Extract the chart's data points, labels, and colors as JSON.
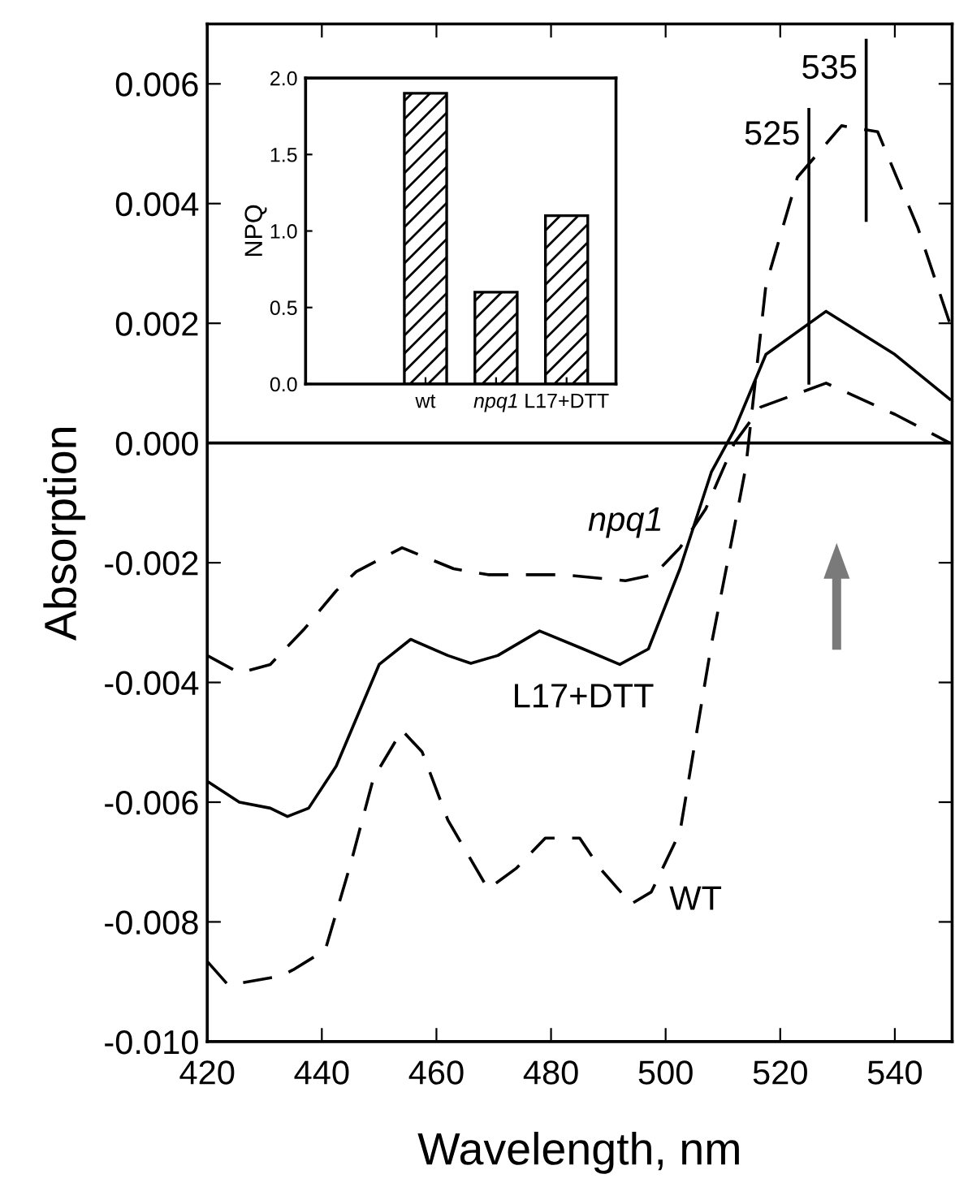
{
  "chart_data": [
    {
      "type": "line",
      "xlabel": "Wavelength, nm",
      "ylabel": "Absorption",
      "xlim": [
        420,
        550
      ],
      "ylim": [
        -0.01,
        0.007
      ],
      "xticks": [
        420,
        440,
        460,
        480,
        500,
        520,
        540
      ],
      "yticks": [
        {
          "value": -0.01,
          "label": "-0.010"
        },
        {
          "value": -0.008,
          "label": "-0.008"
        },
        {
          "value": -0.006,
          "label": "-0.006"
        },
        {
          "value": -0.004,
          "label": "-0.004"
        },
        {
          "value": -0.002,
          "label": "-0.002"
        },
        {
          "value": 0,
          "label": "0.000"
        },
        {
          "value": 0.002,
          "label": "0.002"
        },
        {
          "value": 0.004,
          "label": "0.004"
        },
        {
          "value": 0.006,
          "label": "0.006"
        }
      ],
      "grid": false,
      "legend": false,
      "series": [
        {
          "name": "npq1",
          "color": "#000000",
          "line_style": "dashed",
          "x": [
            420,
            425.6,
            431,
            437,
            442.5,
            446,
            454,
            463,
            469,
            482,
            493,
            498,
            502.5,
            507,
            512,
            516.6,
            528,
            540,
            549.6
          ],
          "values": [
            -0.00355,
            -0.00384,
            -0.0037,
            -0.0031,
            -0.00247,
            -0.00215,
            -0.00175,
            -0.0021,
            -0.0022,
            -0.0022,
            -0.0023,
            -0.0022,
            -0.00175,
            -0.0011,
            0.0,
            0.0006,
            0.001,
            0.00048,
            0.0
          ]
        },
        {
          "name": "L17+DTT",
          "color": "#000000",
          "line_style": "solid",
          "x": [
            420,
            425.6,
            431,
            434,
            437.7,
            442.5,
            450,
            455.5,
            462,
            466,
            470.7,
            478,
            485.6,
            492,
            497,
            502.5,
            508,
            512,
            517.5,
            528,
            540,
            549.6
          ],
          "values": [
            -0.00565,
            -0.006,
            -0.0061,
            -0.00624,
            -0.0061,
            -0.0054,
            -0.0037,
            -0.00328,
            -0.00355,
            -0.00368,
            -0.00355,
            -0.00314,
            -0.00344,
            -0.0037,
            -0.00344,
            -0.0021,
            -0.00048,
            0.00022,
            0.00148,
            0.0022,
            0.00148,
            0.00073
          ]
        },
        {
          "name": "WT",
          "color": "#000000",
          "line_style": "dashed",
          "x": [
            420,
            423.7,
            433,
            435,
            440.6,
            445,
            449,
            454,
            457.5,
            462,
            469,
            474,
            479,
            485,
            488.5,
            494,
            497.5,
            502.5,
            508,
            512,
            514,
            517.5,
            523,
            530.7,
            537,
            544,
            549.6
          ],
          "values": [
            -0.00866,
            -0.00906,
            -0.0089,
            -0.0088,
            -0.00847,
            -0.00704,
            -0.0056,
            -0.0048,
            -0.00516,
            -0.0063,
            -0.00745,
            -0.0071,
            -0.0066,
            -0.0066,
            -0.0071,
            -0.0077,
            -0.0075,
            -0.0065,
            -0.00336,
            -0.0014,
            -0.0004,
            0.00264,
            0.00444,
            0.0053,
            0.0052,
            0.0036,
            0.002
          ]
        }
      ],
      "ref_lines": [
        {
          "axis": "y",
          "value": 0,
          "color": "#000000",
          "line_style": "solid"
        },
        {
          "axis": "x",
          "value": 525,
          "label": "525",
          "color": "#000000"
        },
        {
          "axis": "x",
          "value": 535,
          "label": "535",
          "color": "#000000"
        }
      ]
    },
    {
      "type": "bar",
      "ylabel": "NPQ",
      "categories": [
        "wt",
        "npq1",
        "L17+DTT"
      ],
      "values": [
        1.9,
        0.6,
        1.1
      ],
      "color": "#000000",
      "ylim": [
        0,
        2
      ],
      "yticks": [
        {
          "value": 0,
          "label": "0.0"
        },
        {
          "value": 0.5,
          "label": "0.5"
        },
        {
          "value": 1,
          "label": "1.0"
        },
        {
          "value": 1.5,
          "label": "1.5"
        },
        {
          "value": 2,
          "label": "2.0"
        }
      ],
      "grid": false,
      "legend": false
    }
  ]
}
